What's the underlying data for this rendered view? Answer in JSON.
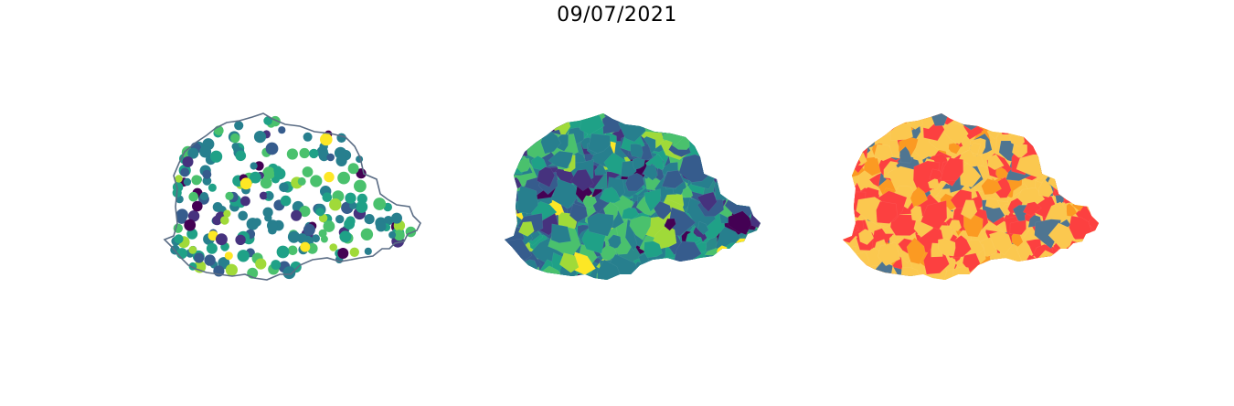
{
  "figure": {
    "date": "09/07/2021"
  },
  "maps": [
    {
      "kind": "point-map",
      "colormap": "viridis",
      "outline_color": "#5b6d85"
    },
    {
      "kind": "choropleth",
      "colormap": "viridis"
    },
    {
      "kind": "categorical-choropleth",
      "category_colors": [
        "#fbc84f",
        "#fc4040",
        "#fb9a22",
        "#4f7591"
      ]
    }
  ],
  "palettes": {
    "viridis": [
      "#440154",
      "#46327e",
      "#365c8d",
      "#277f8e",
      "#1fa187",
      "#4ac16d",
      "#a0da39",
      "#fde725"
    ]
  }
}
